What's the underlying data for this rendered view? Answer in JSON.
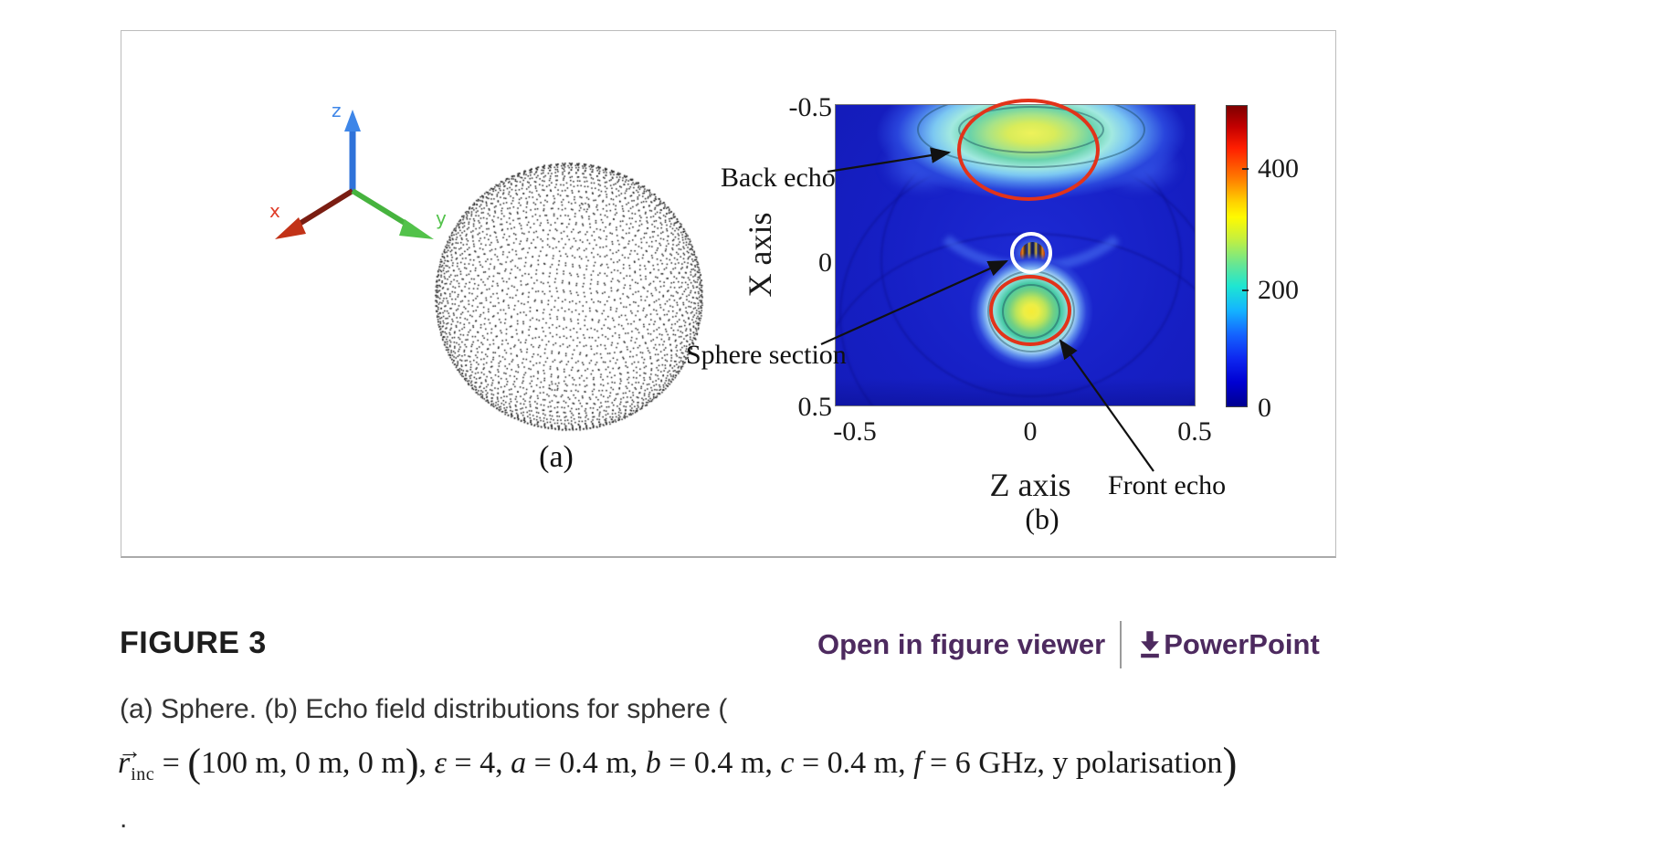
{
  "colors": {
    "link-purple": "#4d2a5f",
    "annotation-red": "#e2331a",
    "heatmap-blue": "#1721c8",
    "axis-x-red": "#d93a22",
    "axis-y-green": "#4cb944",
    "axis-z-blue": "#2f72d9"
  },
  "figure_meta": {
    "label": "FIGURE 3",
    "open_viewer_link": "Open in figure viewer",
    "powerpoint_link": "PowerPoint"
  },
  "caption": {
    "line1": "(a) Sphere. (b) Echo field distributions for sphere (",
    "trailing_period": ".",
    "math": {
      "vec": "r",
      "vec_arrow": "→",
      "vec_sub": "inc",
      "eq1": " = ",
      "open_paren": "(",
      "coords": "100 m, 0 m, 0 m",
      "close_paren_inner": ")",
      "comma1": ", ",
      "eps": "ε",
      "eps_val": " = 4, ",
      "a": "a",
      "a_val": " = 0.4 m, ",
      "b": "b",
      "b_val": " = 0.4 m, ",
      "c": "c",
      "c_val": " = 0.4 m, ",
      "f": "f",
      "f_val": " = 6 GHz, y polarisation",
      "close_paren_outer": ")"
    }
  },
  "panel_a": {
    "label": "(a)",
    "axis_labels": {
      "x": "x",
      "y": "y",
      "z": "z"
    }
  },
  "panel_b": {
    "label": "(b)",
    "xlabel": "Z axis",
    "ylabel": "X axis",
    "x_ticks": [
      "-0.5",
      "0",
      "0.5"
    ],
    "y_ticks": [
      "-0.5",
      "0",
      "0.5"
    ],
    "colorbar_ticks": [
      "400",
      "200",
      "0"
    ],
    "annotations": {
      "back_echo": "Back echo",
      "sphere_section": "Sphere section",
      "front_echo": "Front echo"
    }
  },
  "chart_data": {
    "type": "heatmap",
    "xlabel": "Z axis",
    "ylabel": "X axis",
    "xlim": [
      -0.5,
      0.5
    ],
    "ylim": [
      -0.5,
      0.5
    ],
    "y_axis_direction": "reversed (-0.5 at top)",
    "colormap": "jet",
    "colorbar_ticks": [
      0,
      200,
      400
    ],
    "colorbar_range": [
      0,
      500
    ],
    "background_value": 30,
    "features": [
      {
        "label": "Back echo",
        "z": 0.0,
        "x": -0.42,
        "peak_value": 330,
        "shape": "wide horizontal elliptical lobe, circled in red"
      },
      {
        "label": "Sphere section",
        "z": 0.0,
        "x": -0.03,
        "peak_value": 450,
        "shape": "small multicoloured disc at origin, circled in white"
      },
      {
        "label": "Front echo",
        "z": 0.0,
        "x": 0.16,
        "peak_value": 340,
        "shape": "round lobe below origin, circled in red"
      }
    ]
  }
}
